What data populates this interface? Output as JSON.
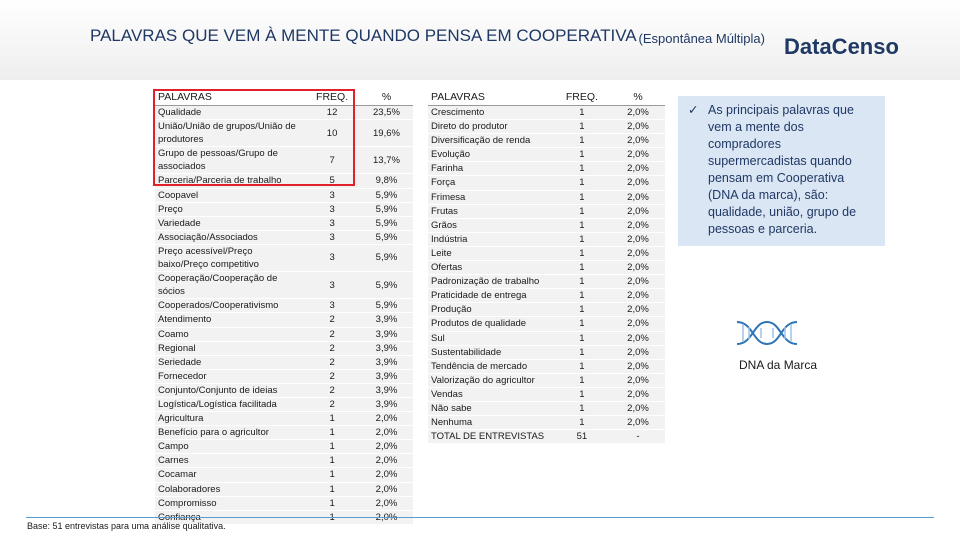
{
  "header": {
    "title": "PALAVRAS QUE VEM À MENTE QUANDO PENSA EM COOPERATIVA",
    "subtitle": "(Espontânea Múltipla)",
    "logo": "DataCenso"
  },
  "table_left": {
    "columns": [
      "PALAVRAS",
      "FREQ.",
      "%"
    ],
    "rows": [
      [
        "Qualidade",
        12,
        "23,5%"
      ],
      [
        "União/União de grupos/União de produtores",
        10,
        "19,6%"
      ],
      [
        "Grupo de pessoas/Grupo de associados",
        7,
        "13,7%"
      ],
      [
        "Parceria/Parceria de trabalho",
        5,
        "9,8%"
      ],
      [
        "Coopavel",
        3,
        "5,9%"
      ],
      [
        "Preço",
        3,
        "5,9%"
      ],
      [
        "Variedade",
        3,
        "5,9%"
      ],
      [
        "Associação/Associados",
        3,
        "5,9%"
      ],
      [
        "Preço acessível/Preço baixo/Preço competitivo",
        3,
        "5,9%"
      ],
      [
        "Cooperação/Cooperação de sócios",
        3,
        "5,9%"
      ],
      [
        "Cooperados/Cooperativismo",
        3,
        "5,9%"
      ],
      [
        "Atendimento",
        2,
        "3,9%"
      ],
      [
        "Coamo",
        2,
        "3,9%"
      ],
      [
        "Regional",
        2,
        "3,9%"
      ],
      [
        "Seriedade",
        2,
        "3,9%"
      ],
      [
        "Fornecedor",
        2,
        "3,9%"
      ],
      [
        "Conjunto/Conjunto de ideias",
        2,
        "3,9%"
      ],
      [
        "Logística/Logística facilitada",
        2,
        "3,9%"
      ],
      [
        "Agricultura",
        1,
        "2,0%"
      ],
      [
        "Benefício para o agricultor",
        1,
        "2,0%"
      ],
      [
        "Campo",
        1,
        "2,0%"
      ],
      [
        "Carnes",
        1,
        "2,0%"
      ],
      [
        "Cocamar",
        1,
        "2,0%"
      ],
      [
        "Colaboradores",
        1,
        "2,0%"
      ],
      [
        "Compromisso",
        1,
        "2,0%"
      ],
      [
        "Confiança",
        1,
        "2,0%"
      ]
    ]
  },
  "table_right": {
    "columns": [
      "PALAVRAS",
      "FREQ.",
      "%"
    ],
    "rows": [
      [
        "Crescimento",
        1,
        "2,0%"
      ],
      [
        "Direto do produtor",
        1,
        "2,0%"
      ],
      [
        "Diversificação de renda",
        1,
        "2,0%"
      ],
      [
        "Evolução",
        1,
        "2,0%"
      ],
      [
        "Farinha",
        1,
        "2,0%"
      ],
      [
        "Força",
        1,
        "2,0%"
      ],
      [
        "Frimesa",
        1,
        "2,0%"
      ],
      [
        "Frutas",
        1,
        "2,0%"
      ],
      [
        "Grãos",
        1,
        "2,0%"
      ],
      [
        "Indústria",
        1,
        "2,0%"
      ],
      [
        "Leite",
        1,
        "2,0%"
      ],
      [
        "Ofertas",
        1,
        "2,0%"
      ],
      [
        "Padronização de trabalho",
        1,
        "2,0%"
      ],
      [
        "Praticidade de entrega",
        1,
        "2,0%"
      ],
      [
        "Produção",
        1,
        "2,0%"
      ],
      [
        "Produtos de qualidade",
        1,
        "2,0%"
      ],
      [
        "Sul",
        1,
        "2,0%"
      ],
      [
        "Sustentabilidade",
        1,
        "2,0%"
      ],
      [
        "Tendência de mercado",
        1,
        "2,0%"
      ],
      [
        "Valorização do agricultor",
        1,
        "2,0%"
      ],
      [
        "Vendas",
        1,
        "2,0%"
      ],
      [
        "Não sabe",
        1,
        "2,0%"
      ],
      [
        "Nenhuma",
        1,
        "2,0%"
      ],
      [
        "TOTAL DE ENTREVISTAS",
        51,
        "-"
      ]
    ]
  },
  "note": "As principais palavras que vem a mente dos compradores supermercadistas quando pensam em Cooperativa (DNA da marca), são: qualidade, união, grupo de pessoas e parceria.",
  "dna_label": "DNA da Marca",
  "footer": "Base: 51 entrevistas para uma análise qualitativa."
}
